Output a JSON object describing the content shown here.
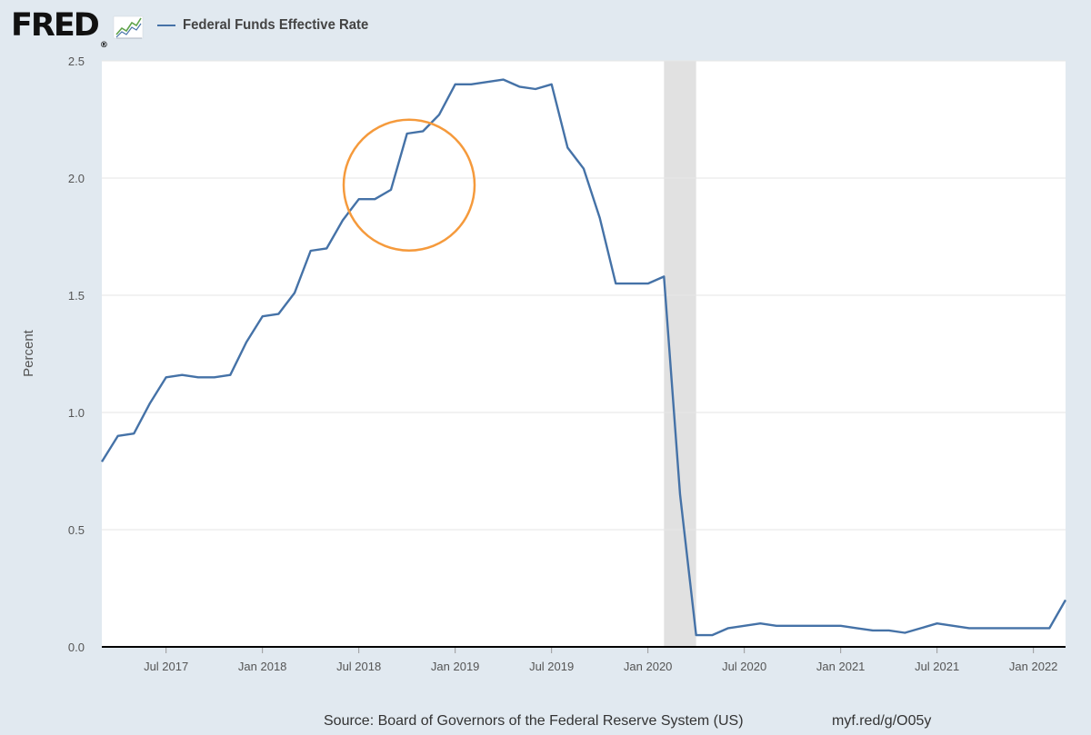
{
  "brand": {
    "logo_text": "FRED",
    "logo_registered": "®",
    "logo_icon": "line-chart-icon"
  },
  "legend": {
    "label": "Federal Funds Effective Rate",
    "swatch_color": "#4572a7"
  },
  "chart_data": {
    "type": "line",
    "title": "Federal Funds Effective Rate",
    "xlabel": "",
    "ylabel": "Percent",
    "ylim": [
      0,
      2.5
    ],
    "yticks": [
      "0.0",
      "0.5",
      "1.0",
      "1.5",
      "2.0",
      "2.5"
    ],
    "x_domain": [
      "2017-03",
      "2022-03"
    ],
    "xticks": [
      {
        "label": "Jul 2017",
        "date": "2017-07"
      },
      {
        "label": "Jan 2018",
        "date": "2018-01"
      },
      {
        "label": "Jul 2018",
        "date": "2018-07"
      },
      {
        "label": "Jan 2019",
        "date": "2019-01"
      },
      {
        "label": "Jul 2019",
        "date": "2019-07"
      },
      {
        "label": "Jan 2020",
        "date": "2020-01"
      },
      {
        "label": "Jul 2020",
        "date": "2020-07"
      },
      {
        "label": "Jan 2021",
        "date": "2021-01"
      },
      {
        "label": "Jul 2021",
        "date": "2021-07"
      },
      {
        "label": "Jan 2022",
        "date": "2022-01"
      }
    ],
    "recession": {
      "start": "2020-02",
      "end": "2020-04"
    },
    "annotation": {
      "type": "circle",
      "center_date": "2018-09",
      "center_value": 1.97,
      "color": "#f59a3c"
    },
    "series": [
      {
        "name": "Federal Funds Effective Rate",
        "color": "#4572a7",
        "x": [
          "2017-03",
          "2017-04",
          "2017-05",
          "2017-06",
          "2017-07",
          "2017-08",
          "2017-09",
          "2017-10",
          "2017-11",
          "2017-12",
          "2018-01",
          "2018-02",
          "2018-03",
          "2018-04",
          "2018-05",
          "2018-06",
          "2018-07",
          "2018-08",
          "2018-09",
          "2018-10",
          "2018-11",
          "2018-12",
          "2019-01",
          "2019-02",
          "2019-03",
          "2019-04",
          "2019-05",
          "2019-06",
          "2019-07",
          "2019-08",
          "2019-09",
          "2019-10",
          "2019-11",
          "2019-12",
          "2020-01",
          "2020-02",
          "2020-03",
          "2020-04",
          "2020-05",
          "2020-06",
          "2020-07",
          "2020-08",
          "2020-09",
          "2020-10",
          "2020-11",
          "2020-12",
          "2021-01",
          "2021-02",
          "2021-03",
          "2021-04",
          "2021-05",
          "2021-06",
          "2021-07",
          "2021-08",
          "2021-09",
          "2021-10",
          "2021-11",
          "2021-12",
          "2022-01",
          "2022-02",
          "2022-03"
        ],
        "values": [
          0.79,
          0.9,
          0.91,
          1.04,
          1.15,
          1.16,
          1.15,
          1.15,
          1.16,
          1.3,
          1.41,
          1.42,
          1.51,
          1.69,
          1.7,
          1.82,
          1.91,
          1.91,
          1.95,
          2.19,
          2.2,
          2.27,
          2.4,
          2.4,
          2.41,
          2.42,
          2.39,
          2.38,
          2.4,
          2.13,
          2.04,
          1.83,
          1.55,
          1.55,
          1.55,
          1.58,
          0.65,
          0.05,
          0.05,
          0.08,
          0.09,
          0.1,
          0.09,
          0.09,
          0.09,
          0.09,
          0.09,
          0.08,
          0.07,
          0.07,
          0.06,
          0.08,
          0.1,
          0.09,
          0.08,
          0.08,
          0.08,
          0.08,
          0.08,
          0.08,
          0.2
        ]
      }
    ]
  },
  "footer": {
    "source": "Source: Board of Governors of the Federal Reserve System (US)",
    "link": "myf.red/g/O05y"
  }
}
